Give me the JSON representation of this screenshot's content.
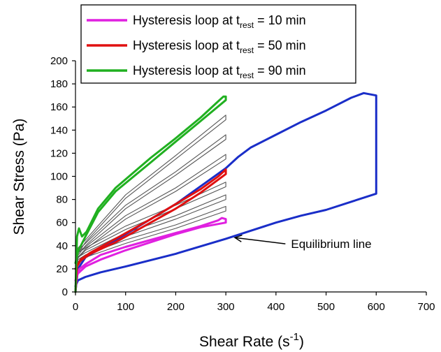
{
  "chart_data": {
    "type": "line",
    "xlabel": "Shear Rate (s",
    "xlabel_sup": "-1",
    "xlabel_close": ")",
    "ylabel": "Shear Stress (Pa)",
    "xlim": [
      0,
      700
    ],
    "ylim": [
      0,
      200
    ],
    "x_ticks": [
      0,
      100,
      200,
      300,
      400,
      500,
      600,
      700
    ],
    "y_ticks": [
      0,
      20,
      40,
      60,
      80,
      100,
      120,
      140,
      160,
      180,
      200
    ],
    "grid": false,
    "legend_position": "top-left",
    "series": [
      {
        "name": "Hysteresis loop at t_rest = 10 min",
        "legend_main": "Hysteresis loop at t",
        "legend_sub": "rest",
        "legend_tail": " = 10 min",
        "color": "#e020e0",
        "up": [
          [
            0,
            0
          ],
          [
            3,
            15
          ],
          [
            8,
            20
          ],
          [
            20,
            24
          ],
          [
            50,
            32
          ],
          [
            100,
            39
          ],
          [
            150,
            45
          ],
          [
            200,
            51
          ],
          [
            250,
            57
          ],
          [
            285,
            62
          ],
          [
            292,
            64
          ],
          [
            300,
            63
          ]
        ],
        "down": [
          [
            300,
            60
          ],
          [
            250,
            56
          ],
          [
            200,
            50
          ],
          [
            150,
            43
          ],
          [
            100,
            36
          ],
          [
            50,
            28
          ],
          [
            20,
            22
          ],
          [
            5,
            16
          ],
          [
            0,
            10
          ]
        ]
      },
      {
        "name": "Hysteresis loop at t_rest = 50 min",
        "legend_main": "Hysteresis loop at t",
        "legend_sub": "rest",
        "legend_tail": " = 50 min",
        "color": "#e01010",
        "up": [
          [
            0,
            0
          ],
          [
            3,
            22
          ],
          [
            10,
            28
          ],
          [
            30,
            34
          ],
          [
            80,
            46
          ],
          [
            150,
            63
          ],
          [
            200,
            76
          ],
          [
            250,
            89
          ],
          [
            285,
            100
          ],
          [
            295,
            104
          ],
          [
            300,
            106
          ]
        ],
        "down": [
          [
            300,
            102
          ],
          [
            250,
            86
          ],
          [
            200,
            72
          ],
          [
            150,
            60
          ],
          [
            80,
            43
          ],
          [
            30,
            33
          ],
          [
            10,
            27
          ],
          [
            0,
            20
          ]
        ]
      },
      {
        "name": "Hysteresis loop at t_rest = 90 min",
        "legend_main": "Hysteresis loop at t",
        "legend_sub": "rest",
        "legend_tail": " = 90 min",
        "color": "#20b020",
        "up": [
          [
            0,
            0
          ],
          [
            3,
            48
          ],
          [
            7,
            55
          ],
          [
            13,
            48
          ],
          [
            22,
            52
          ],
          [
            45,
            72
          ],
          [
            80,
            90
          ],
          [
            150,
            116
          ],
          [
            200,
            133
          ],
          [
            250,
            151
          ],
          [
            285,
            165
          ],
          [
            295,
            169
          ],
          [
            300,
            169
          ]
        ],
        "down": [
          [
            300,
            166
          ],
          [
            250,
            148
          ],
          [
            200,
            130
          ],
          [
            150,
            112
          ],
          [
            80,
            87
          ],
          [
            45,
            69
          ],
          [
            20,
            48
          ],
          [
            5,
            35
          ],
          [
            0,
            25
          ]
        ]
      },
      {
        "color": "#1a2ec8",
        "up": [
          [
            0,
            0
          ],
          [
            5,
            20
          ],
          [
            20,
            30
          ],
          [
            100,
            50
          ],
          [
            200,
            76
          ],
          [
            300,
            107
          ],
          [
            325,
            117
          ],
          [
            350,
            125
          ],
          [
            400,
            136
          ],
          [
            450,
            147
          ],
          [
            500,
            157
          ],
          [
            550,
            168
          ],
          [
            575,
            172
          ],
          [
            600,
            170
          ],
          [
            600,
            90
          ]
        ],
        "down": [
          [
            600,
            85
          ],
          [
            550,
            78
          ],
          [
            500,
            71
          ],
          [
            450,
            66
          ],
          [
            400,
            60
          ],
          [
            350,
            53
          ],
          [
            300,
            46
          ],
          [
            200,
            33
          ],
          [
            100,
            22
          ],
          [
            50,
            17
          ],
          [
            20,
            13
          ],
          [
            5,
            10
          ],
          [
            0,
            5
          ]
        ]
      },
      {
        "color": "#555555",
        "up": [
          [
            0,
            0
          ],
          [
            5,
            28
          ],
          [
            20,
            32
          ],
          [
            100,
            45
          ],
          [
            200,
            58
          ],
          [
            300,
            74
          ]
        ],
        "down": [
          [
            300,
            70
          ],
          [
            200,
            55
          ],
          [
            100,
            42
          ],
          [
            20,
            30
          ],
          [
            0,
            22
          ]
        ]
      },
      {
        "color": "#555555",
        "up": [
          [
            0,
            0
          ],
          [
            5,
            30
          ],
          [
            20,
            34
          ],
          [
            100,
            51
          ],
          [
            200,
            66
          ],
          [
            300,
            84
          ]
        ],
        "down": [
          [
            300,
            80
          ],
          [
            200,
            63
          ],
          [
            100,
            48
          ],
          [
            20,
            32
          ],
          [
            0,
            24
          ]
        ]
      },
      {
        "color": "#555555",
        "up": [
          [
            0,
            0
          ],
          [
            5,
            34
          ],
          [
            20,
            38
          ],
          [
            100,
            57
          ],
          [
            200,
            75
          ],
          [
            300,
            95
          ]
        ],
        "down": [
          [
            300,
            91
          ],
          [
            200,
            72
          ],
          [
            100,
            54
          ],
          [
            20,
            36
          ],
          [
            0,
            27
          ]
        ]
      },
      {
        "color": "#555555",
        "up": [
          [
            0,
            0
          ],
          [
            5,
            35
          ],
          [
            20,
            39
          ],
          [
            100,
            66
          ],
          [
            200,
            90
          ],
          [
            300,
            119
          ]
        ],
        "down": [
          [
            300,
            115
          ],
          [
            200,
            87
          ],
          [
            100,
            63
          ],
          [
            20,
            37
          ],
          [
            0,
            28
          ]
        ]
      },
      {
        "color": "#555555",
        "up": [
          [
            0,
            0
          ],
          [
            5,
            36
          ],
          [
            20,
            42
          ],
          [
            100,
            75
          ],
          [
            200,
            104
          ],
          [
            300,
            136
          ]
        ],
        "down": [
          [
            300,
            132
          ],
          [
            200,
            101
          ],
          [
            100,
            72
          ],
          [
            20,
            40
          ],
          [
            0,
            29
          ]
        ]
      },
      {
        "color": "#555555",
        "up": [
          [
            0,
            0
          ],
          [
            5,
            38
          ],
          [
            20,
            45
          ],
          [
            100,
            84
          ],
          [
            200,
            118
          ],
          [
            300,
            153
          ]
        ],
        "down": [
          [
            300,
            149
          ],
          [
            200,
            115
          ],
          [
            100,
            81
          ],
          [
            20,
            43
          ],
          [
            0,
            30
          ]
        ]
      }
    ],
    "annotation": {
      "text": "Equilibrium line",
      "arrow_to": [
        318,
        47
      ],
      "label_at": [
        430,
        38
      ]
    }
  }
}
